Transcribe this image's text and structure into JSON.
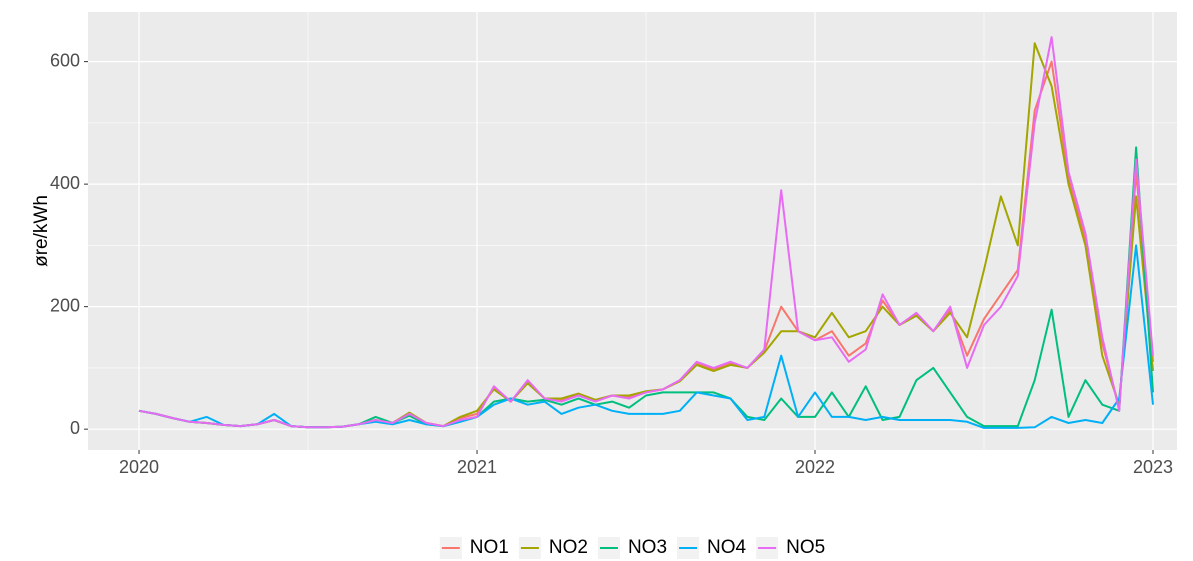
{
  "chart_data": {
    "type": "line",
    "y_label": "øre/kWh",
    "x": [
      2020.0,
      2020.05,
      2020.1,
      2020.15,
      2020.2,
      2020.25,
      2020.3,
      2020.35,
      2020.4,
      2020.45,
      2020.5,
      2020.55,
      2020.6,
      2020.65,
      2020.7,
      2020.75,
      2020.8,
      2020.85,
      2020.9,
      2020.95,
      2021.0,
      2021.05,
      2021.1,
      2021.15,
      2021.2,
      2021.25,
      2021.3,
      2021.35,
      2021.4,
      2021.45,
      2021.5,
      2021.55,
      2021.6,
      2021.65,
      2021.7,
      2021.75,
      2021.8,
      2021.85,
      2021.9,
      2021.95,
      2022.0,
      2022.05,
      2022.1,
      2022.15,
      2022.2,
      2022.25,
      2022.3,
      2022.35,
      2022.4,
      2022.45,
      2022.5,
      2022.55,
      2022.6,
      2022.65,
      2022.7,
      2022.75,
      2022.8,
      2022.85,
      2022.9,
      2022.95,
      2023.0
    ],
    "series": [
      {
        "name": "NO1",
        "color": "#F8766D",
        "values": [
          30,
          25,
          18,
          12,
          10,
          7,
          5,
          8,
          15,
          5,
          3,
          3,
          4,
          8,
          15,
          10,
          26,
          10,
          5,
          18,
          25,
          68,
          45,
          78,
          50,
          48,
          56,
          46,
          55,
          52,
          60,
          65,
          80,
          108,
          98,
          108,
          100,
          128,
          200,
          160,
          145,
          160,
          120,
          140,
          210,
          170,
          188,
          160,
          195,
          120,
          180,
          220,
          260,
          520,
          600,
          410,
          310,
          140,
          35,
          420,
          110
        ]
      },
      {
        "name": "NO2",
        "color": "#A3A500",
        "values": [
          30,
          25,
          18,
          12,
          10,
          7,
          5,
          8,
          15,
          5,
          3,
          3,
          4,
          8,
          15,
          10,
          27,
          10,
          5,
          20,
          30,
          65,
          45,
          75,
          50,
          50,
          58,
          48,
          55,
          55,
          62,
          65,
          78,
          105,
          95,
          105,
          100,
          125,
          160,
          160,
          150,
          190,
          150,
          160,
          200,
          170,
          185,
          160,
          190,
          150,
          260,
          380,
          300,
          630,
          560,
          400,
          300,
          120,
          40,
          380,
          95
        ]
      },
      {
        "name": "NO3",
        "color": "#00BF7D",
        "values": [
          30,
          25,
          18,
          12,
          10,
          7,
          5,
          8,
          15,
          5,
          3,
          3,
          4,
          8,
          20,
          10,
          22,
          8,
          5,
          12,
          20,
          45,
          50,
          45,
          48,
          40,
          50,
          40,
          45,
          35,
          55,
          60,
          60,
          60,
          60,
          50,
          20,
          15,
          50,
          20,
          20,
          60,
          20,
          70,
          15,
          20,
          80,
          100,
          60,
          20,
          5,
          5,
          5,
          80,
          195,
          20,
          80,
          40,
          30,
          460,
          60
        ]
      },
      {
        "name": "NO4",
        "color": "#00B0F6",
        "values": [
          30,
          25,
          18,
          12,
          20,
          7,
          5,
          8,
          25,
          5,
          3,
          3,
          4,
          8,
          12,
          8,
          15,
          8,
          5,
          12,
          20,
          40,
          50,
          40,
          45,
          25,
          35,
          40,
          30,
          25,
          25,
          25,
          30,
          60,
          55,
          50,
          15,
          20,
          120,
          20,
          60,
          20,
          20,
          15,
          20,
          15,
          15,
          15,
          15,
          12,
          2,
          2,
          2,
          3,
          20,
          10,
          15,
          10,
          50,
          300,
          40
        ]
      },
      {
        "name": "NO5",
        "color": "#E76BF3",
        "values": [
          30,
          25,
          18,
          12,
          10,
          7,
          5,
          8,
          15,
          5,
          3,
          3,
          4,
          8,
          15,
          10,
          25,
          10,
          5,
          15,
          20,
          70,
          45,
          80,
          50,
          45,
          55,
          45,
          55,
          50,
          60,
          65,
          80,
          110,
          100,
          110,
          100,
          130,
          390,
          160,
          145,
          150,
          110,
          130,
          220,
          170,
          190,
          160,
          200,
          100,
          170,
          200,
          250,
          500,
          640,
          420,
          320,
          150,
          30,
          440,
          120
        ]
      }
    ],
    "xlim": [
      2019.849,
      2023.071
    ],
    "xticks": [
      2020,
      2021,
      2022,
      2023
    ],
    "ylim": [
      -34,
      681
    ],
    "yticks": [
      0,
      200,
      400,
      600
    ],
    "grid": true,
    "legend": "bottom"
  }
}
